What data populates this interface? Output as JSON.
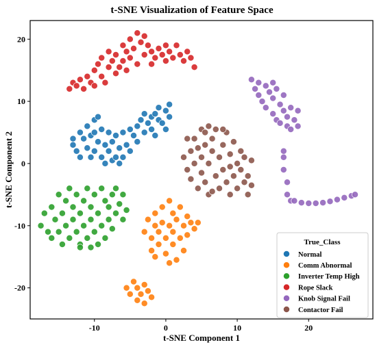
{
  "chart_data": {
    "type": "scatter",
    "title": "t-SNE Visualization of Feature Space",
    "xlabel": "t-SNE Component 1",
    "ylabel": "t-SNE Component 2",
    "xlim": [
      -19,
      29
    ],
    "ylim": [
      -25,
      23
    ],
    "xticks": [
      -10,
      0,
      10,
      20
    ],
    "yticks": [
      -20,
      -10,
      0,
      10,
      20
    ],
    "grid": false,
    "legend": {
      "title": "True_Class",
      "placement": "lower-right"
    },
    "series": [
      {
        "name": "Normal",
        "color": "#1f77b4",
        "values": [
          [
            -13,
            4
          ],
          [
            -13,
            3
          ],
          [
            -12.5,
            2
          ],
          [
            -12,
            5
          ],
          [
            -12,
            1
          ],
          [
            -11.5,
            4
          ],
          [
            -11,
            6
          ],
          [
            -11,
            2.5
          ],
          [
            -10.5,
            1
          ],
          [
            -10.5,
            4.5
          ],
          [
            -10,
            7
          ],
          [
            -10,
            5
          ],
          [
            -10,
            2
          ],
          [
            -9.5,
            3.5
          ],
          [
            -9.5,
            7.5
          ],
          [
            -9,
            5.5
          ],
          [
            -9,
            1
          ],
          [
            -8.5,
            3
          ],
          [
            -8.5,
            0
          ],
          [
            -8,
            2
          ],
          [
            -8,
            5
          ],
          [
            -7.5,
            0.5
          ],
          [
            -7.5,
            3.5
          ],
          [
            -7,
            1
          ],
          [
            -7,
            4.5
          ],
          [
            -6.5,
            0
          ],
          [
            -6.5,
            2.5
          ],
          [
            -6,
            1
          ],
          [
            -6,
            5
          ],
          [
            -5.5,
            3
          ],
          [
            -5,
            5.5
          ],
          [
            -5,
            2
          ],
          [
            -4.5,
            4.5
          ],
          [
            -4,
            6
          ],
          [
            -4,
            3.5
          ],
          [
            -3.5,
            7
          ],
          [
            -3,
            5
          ],
          [
            -3,
            8
          ],
          [
            -2.5,
            6.5
          ],
          [
            -2,
            7.5
          ],
          [
            -2,
            5.5
          ],
          [
            -1.5,
            4.5
          ],
          [
            -1.5,
            8
          ],
          [
            -1,
            7
          ],
          [
            -1,
            9
          ],
          [
            -0.5,
            6.5
          ],
          [
            0,
            8.5
          ],
          [
            0,
            5.5
          ],
          [
            0.5,
            7.5
          ],
          [
            0.5,
            9.5
          ]
        ]
      },
      {
        "name": "Comm Abnormal",
        "color": "#ff7f0e",
        "values": [
          [
            -3,
            -11
          ],
          [
            -2.5,
            -9
          ],
          [
            -2,
            -12
          ],
          [
            -2,
            -14
          ],
          [
            -1.5,
            -10
          ],
          [
            -1.5,
            -8
          ],
          [
            -1,
            -11
          ],
          [
            -1,
            -13
          ],
          [
            -0.5,
            -7
          ],
          [
            -0.5,
            -9.5
          ],
          [
            0,
            -12
          ],
          [
            0,
            -14.5
          ],
          [
            0.5,
            -10
          ],
          [
            0.5,
            -6
          ],
          [
            1,
            -8
          ],
          [
            1,
            -11
          ],
          [
            1,
            -13
          ],
          [
            1.5,
            -15.5
          ],
          [
            1.5,
            -9
          ],
          [
            2,
            -7
          ],
          [
            2,
            -12
          ],
          [
            2.5,
            -10
          ],
          [
            2.5,
            -14
          ],
          [
            3,
            -8.5
          ],
          [
            3,
            -11.5
          ],
          [
            3.5,
            -9.5
          ],
          [
            4,
            -10.5
          ],
          [
            4.5,
            -9.5
          ],
          [
            -1.5,
            -15
          ],
          [
            0.5,
            -16
          ],
          [
            -5,
            -21
          ],
          [
            -4.5,
            -19
          ],
          [
            -4,
            -20
          ],
          [
            -4,
            -22
          ],
          [
            -3.5,
            -21
          ],
          [
            -3,
            -19.5
          ],
          [
            -3,
            -22.5
          ],
          [
            -2.5,
            -20.5
          ],
          [
            -2,
            -21.5
          ],
          [
            -5.5,
            -20
          ]
        ]
      },
      {
        "name": "Inverter Temp High",
        "color": "#2ca02c",
        "values": [
          [
            -17.5,
            -10
          ],
          [
            -17,
            -8
          ],
          [
            -16.5,
            -11
          ],
          [
            -16,
            -7
          ],
          [
            -16,
            -12
          ],
          [
            -15.5,
            -9
          ],
          [
            -15,
            -5
          ],
          [
            -15,
            -11
          ],
          [
            -14.5,
            -8
          ],
          [
            -14,
            -6
          ],
          [
            -14,
            -10
          ],
          [
            -13.5,
            -4
          ],
          [
            -13.5,
            -12
          ],
          [
            -13,
            -9
          ],
          [
            -13,
            -7
          ],
          [
            -12.5,
            -5
          ],
          [
            -12.5,
            -11
          ],
          [
            -12,
            -13
          ],
          [
            -12,
            -8
          ],
          [
            -11.5,
            -6
          ],
          [
            -11.5,
            -10
          ],
          [
            -11,
            -4
          ],
          [
            -11,
            -12
          ],
          [
            -10.5,
            -7
          ],
          [
            -10.5,
            -9
          ],
          [
            -10,
            -5
          ],
          [
            -10,
            -11
          ],
          [
            -9.5,
            -13
          ],
          [
            -9.5,
            -8
          ],
          [
            -9,
            -4
          ],
          [
            -9,
            -10
          ],
          [
            -8.5,
            -6
          ],
          [
            -8.5,
            -12
          ],
          [
            -8,
            -7
          ],
          [
            -8,
            -9
          ],
          [
            -7.5,
            -5
          ],
          [
            -7.5,
            -10.5
          ],
          [
            -7,
            -8
          ],
          [
            -7,
            -4
          ],
          [
            -6.5,
            -6.5
          ],
          [
            -6,
            -5
          ],
          [
            -6,
            -9
          ],
          [
            -5.5,
            -7.5
          ],
          [
            -12,
            -13.5
          ],
          [
            -14.5,
            -13
          ],
          [
            -10.5,
            -13.5
          ]
        ]
      },
      {
        "name": "Rope Slack",
        "color": "#d62728",
        "values": [
          [
            -13.5,
            12
          ],
          [
            -13,
            13
          ],
          [
            -12.5,
            12.5
          ],
          [
            -12,
            13.5
          ],
          [
            -11.5,
            12
          ],
          [
            -11,
            14
          ],
          [
            -10.5,
            13
          ],
          [
            -10,
            15
          ],
          [
            -10,
            12.5
          ],
          [
            -9.5,
            16
          ],
          [
            -9,
            14
          ],
          [
            -9,
            17
          ],
          [
            -8.5,
            13
          ],
          [
            -8,
            15.5
          ],
          [
            -8,
            18
          ],
          [
            -7.5,
            16.5
          ],
          [
            -7,
            14.5
          ],
          [
            -7,
            17.5
          ],
          [
            -6.5,
            15.5
          ],
          [
            -6,
            19
          ],
          [
            -6,
            16.5
          ],
          [
            -5.5,
            18
          ],
          [
            -5,
            17
          ],
          [
            -5,
            20
          ],
          [
            -4.5,
            18.5
          ],
          [
            -4,
            16
          ],
          [
            -4,
            21
          ],
          [
            -3.5,
            19.5
          ],
          [
            -3,
            17.5
          ],
          [
            -3,
            20.5
          ],
          [
            -2.5,
            19
          ],
          [
            -2,
            18
          ],
          [
            -2,
            16
          ],
          [
            -1.5,
            17
          ],
          [
            -1,
            18.5
          ],
          [
            -0.5,
            17.5
          ],
          [
            0,
            19
          ],
          [
            0,
            16.5
          ],
          [
            0.5,
            18
          ],
          [
            1,
            17
          ],
          [
            1.5,
            19
          ],
          [
            2,
            17.5
          ],
          [
            2.5,
            16.5
          ],
          [
            3,
            18
          ],
          [
            3.5,
            17
          ],
          [
            4,
            15.5
          ],
          [
            -5.5,
            15
          ]
        ]
      },
      {
        "name": "Knob Signal Fail",
        "color": "#9467bd",
        "values": [
          [
            12,
            13.5
          ],
          [
            12.5,
            12
          ],
          [
            13,
            13
          ],
          [
            13,
            11
          ],
          [
            13.5,
            10
          ],
          [
            14,
            12.5
          ],
          [
            14,
            9
          ],
          [
            14.5,
            11.5
          ],
          [
            15,
            8
          ],
          [
            15,
            10.5
          ],
          [
            15.5,
            7
          ],
          [
            16,
            9.5
          ],
          [
            16,
            6.5
          ],
          [
            16.5,
            8.5
          ],
          [
            17,
            6
          ],
          [
            17,
            7.5
          ],
          [
            17.5,
            5.5
          ],
          [
            18,
            7
          ],
          [
            18.5,
            6
          ],
          [
            17.5,
            9
          ],
          [
            16.5,
            11
          ],
          [
            15.5,
            12
          ],
          [
            16.5,
            2
          ],
          [
            16.5,
            1
          ],
          [
            16.5,
            -1
          ],
          [
            17,
            -3
          ],
          [
            17,
            -5
          ],
          [
            17.5,
            -6
          ],
          [
            18,
            -6
          ],
          [
            19,
            -6.3
          ],
          [
            20,
            -6.4
          ],
          [
            21,
            -6.4
          ],
          [
            22,
            -6.3
          ],
          [
            23,
            -6.1
          ],
          [
            24,
            -5.8
          ],
          [
            25,
            -5.5
          ],
          [
            26,
            -5.2
          ],
          [
            26.5,
            -5
          ],
          [
            15,
            13
          ],
          [
            18.5,
            8.5
          ]
        ]
      },
      {
        "name": "Contactor Fail",
        "color": "#8c564b",
        "values": [
          [
            2.5,
            1
          ],
          [
            3,
            -1
          ],
          [
            3.5,
            2
          ],
          [
            3.5,
            -2.5
          ],
          [
            4,
            0
          ],
          [
            4,
            4
          ],
          [
            4.5,
            -4
          ],
          [
            4.5,
            2.5
          ],
          [
            5,
            5.5
          ],
          [
            5,
            1
          ],
          [
            5,
            -1.5
          ],
          [
            5.5,
            3
          ],
          [
            5.5,
            -3
          ],
          [
            6,
            6
          ],
          [
            6,
            0
          ],
          [
            6,
            -5
          ],
          [
            6.5,
            4
          ],
          [
            6.5,
            2
          ],
          [
            7,
            -2
          ],
          [
            7,
            5.5
          ],
          [
            7.5,
            1
          ],
          [
            7.5,
            -4
          ],
          [
            8,
            3
          ],
          [
            8,
            -1
          ],
          [
            8.5,
            5
          ],
          [
            8.5,
            -3
          ],
          [
            9,
            1.5
          ],
          [
            9,
            -5
          ],
          [
            9.5,
            3.5
          ],
          [
            9.5,
            -2
          ],
          [
            10,
            0
          ],
          [
            10,
            -4
          ],
          [
            10.5,
            2
          ],
          [
            10.5,
            -1
          ],
          [
            11,
            -3
          ],
          [
            11,
            1
          ],
          [
            11.5,
            -5
          ],
          [
            11.5,
            -2
          ],
          [
            12,
            -3.5
          ],
          [
            12,
            0.5
          ],
          [
            6.5,
            -4.5
          ],
          [
            3,
            4
          ],
          [
            5.5,
            5
          ],
          [
            8,
            5.5
          ],
          [
            9,
            -0.5
          ]
        ]
      }
    ]
  }
}
